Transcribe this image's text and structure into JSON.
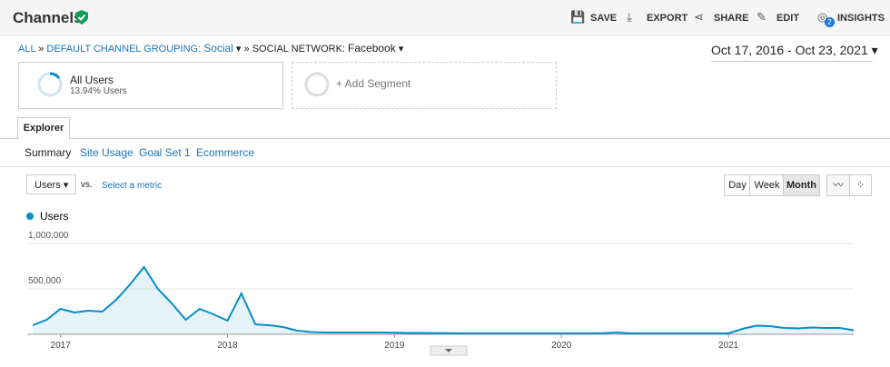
{
  "header": {
    "title": "Channels",
    "actions": [
      "SAVE",
      "EXPORT",
      "SHARE",
      "EDIT",
      "INSIGHTS"
    ],
    "insights_badge": 2
  },
  "breadcrumb": {
    "root": "ALL",
    "grouping_label": "DEFAULT CHANNEL GROUPING:",
    "grouping_value": "Social",
    "dimension_label": "SOCIAL NETWORK:",
    "dimension_value": "Facebook"
  },
  "date_range": "Oct 17, 2016 - Oct 23, 2021",
  "segment": {
    "name": "All Users",
    "detail": "13.94% Users",
    "add": "+ Add Segment"
  },
  "tab": "Explorer",
  "subtabs": [
    "Summary",
    "Site Usage",
    "Goal Set 1",
    "Ecommerce"
  ],
  "metric": {
    "selected": "Users",
    "vs": "vs.",
    "select": "Select a metric"
  },
  "periods": [
    "Day",
    "Week",
    "Month"
  ],
  "chart_data": {
    "type": "line",
    "categories": [
      null,
      null,
      "2017",
      null,
      null,
      null,
      null,
      null,
      null,
      null,
      null,
      null,
      null,
      null,
      "2018",
      null,
      null,
      null,
      null,
      null,
      null,
      null,
      null,
      null,
      null,
      null,
      "2019",
      null,
      null,
      null,
      null,
      null,
      null,
      null,
      null,
      null,
      null,
      null,
      "2020",
      null,
      null,
      null,
      null,
      null,
      null,
      null,
      null,
      null,
      null,
      null,
      "2021",
      null,
      null,
      null,
      null,
      null,
      null,
      null,
      null,
      null
    ],
    "series": [
      {
        "name": "Users",
        "color": "#058dc7",
        "values": [
          100000,
          160000,
          280000,
          240000,
          260000,
          250000,
          380000,
          550000,
          740000,
          500000,
          340000,
          160000,
          280000,
          220000,
          150000,
          450000,
          110000,
          100000,
          80000,
          40000,
          25000,
          20000,
          20000,
          20000,
          20000,
          20000,
          18000,
          15000,
          15000,
          12000,
          12000,
          10000,
          10000,
          10000,
          10000,
          10000,
          10000,
          10000,
          10000,
          10000,
          10000,
          12000,
          20000,
          10000,
          10000,
          10000,
          10000,
          10000,
          10000,
          10000,
          10000,
          60000,
          95000,
          90000,
          70000,
          65000,
          75000,
          70000,
          70000,
          45000
        ]
      }
    ],
    "ylim": [
      0,
      1180000
    ],
    "yticks": [
      {
        "value": 500000,
        "label": "500,000"
      },
      {
        "value": 1000000,
        "label": "1,000,000"
      }
    ],
    "grid": true
  }
}
